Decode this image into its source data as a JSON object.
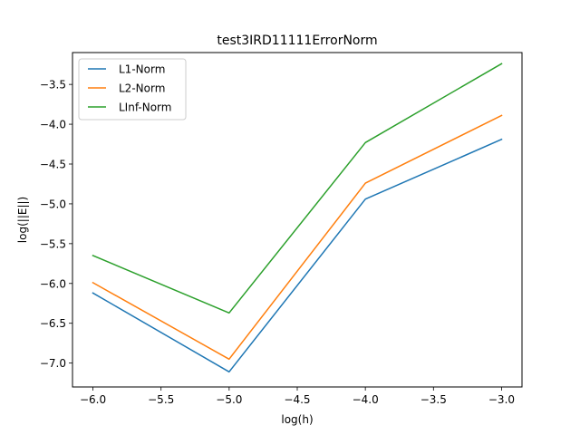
{
  "chart_data": {
    "type": "line",
    "title": "test3IRD11111ErrorNorm",
    "xlabel": "log(h)",
    "ylabel": "log(||E||)",
    "xlim": [
      -6.15,
      -2.85
    ],
    "ylim": [
      -7.3,
      -3.1
    ],
    "x_ticks": [
      -6.0,
      -5.5,
      -5.0,
      -4.5,
      -4.0,
      -3.5,
      -3.0
    ],
    "x_tick_labels": [
      "−6.0",
      "−5.5",
      "−5.0",
      "−4.5",
      "−4.0",
      "−3.5",
      "−3.0"
    ],
    "y_ticks": [
      -7.0,
      -6.5,
      -6.0,
      -5.5,
      -5.0,
      -4.5,
      -4.0,
      -3.5
    ],
    "y_tick_labels": [
      "−7.0",
      "−6.5",
      "−6.0",
      "−5.5",
      "−5.0",
      "−4.5",
      "−4.0",
      "−3.5"
    ],
    "grid": false,
    "legend_position": "top-left",
    "x": [
      -6.0,
      -5.0,
      -4.0,
      -3.0
    ],
    "series": [
      {
        "name": "L1-Norm",
        "color": "#1f77b4",
        "values": [
          -6.12,
          -7.11,
          -4.94,
          -4.19
        ]
      },
      {
        "name": "L2-Norm",
        "color": "#ff7f0e",
        "values": [
          -5.99,
          -6.95,
          -4.74,
          -3.89
        ]
      },
      {
        "name": "LInf-Norm",
        "color": "#2ca02c",
        "values": [
          -5.65,
          -6.37,
          -4.23,
          -3.24
        ]
      }
    ]
  }
}
